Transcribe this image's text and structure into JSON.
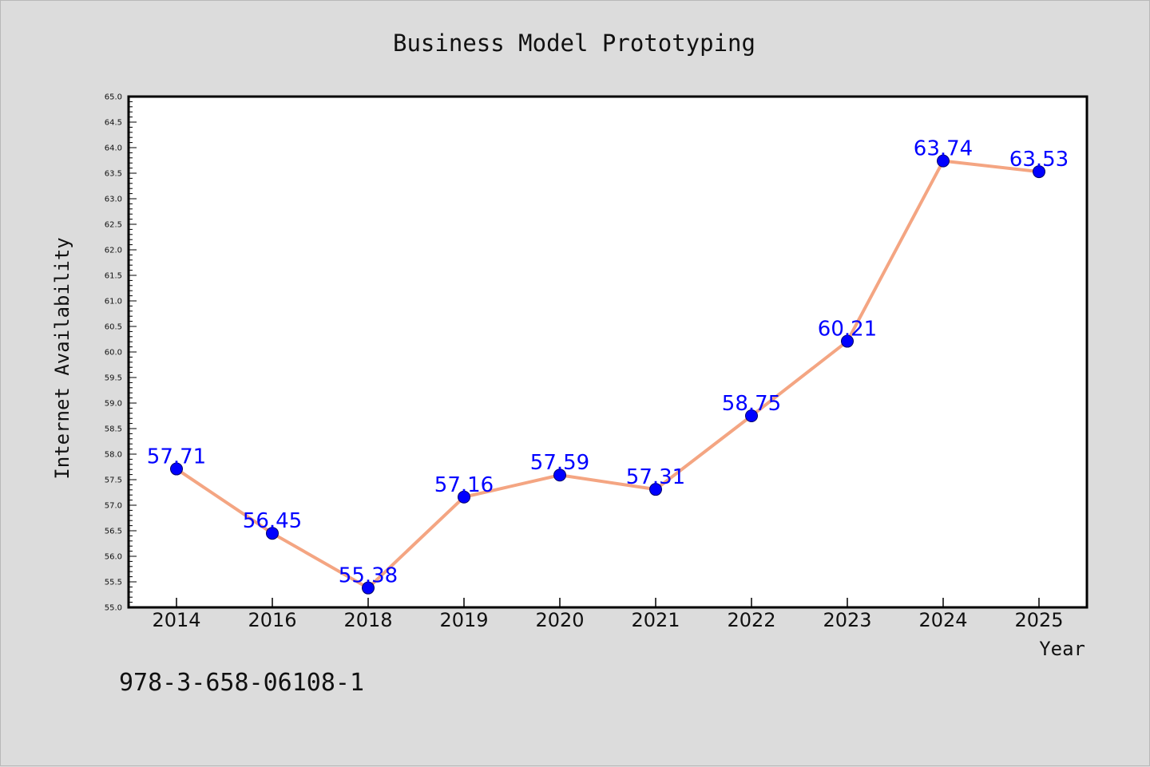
{
  "chart_data": {
    "type": "line",
    "title": "Business Model Prototyping",
    "xlabel": "Year",
    "ylabel": "Internet Availability",
    "categories": [
      "2014",
      "2016",
      "2018",
      "2019",
      "2020",
      "2021",
      "2022",
      "2023",
      "2024",
      "2025"
    ],
    "series": [
      {
        "values": [
          57.71,
          56.45,
          55.38,
          57.16,
          57.59,
          57.31,
          58.75,
          60.21,
          63.74,
          63.53
        ]
      }
    ],
    "data_labels": [
      "57.71",
      "56.45",
      "55.38",
      "57.16",
      "57.59",
      "57.31",
      "58.75",
      "60.21",
      "63.74",
      "63.53"
    ],
    "ylim": [
      55.0,
      65.0
    ],
    "y_major_ticks": [
      "55.0",
      "55.5",
      "56.0",
      "56.5",
      "57.0",
      "57.5",
      "58.0",
      "58.5",
      "59.0",
      "59.5",
      "60.0",
      "60.5",
      "61.0",
      "61.5",
      "62.0",
      "62.5",
      "63.0",
      "63.5",
      "64.0",
      "64.5",
      "65.0"
    ],
    "grid": false,
    "legend": "none",
    "line_color": "#f4a582",
    "marker_color": "#0000ff",
    "label_color": "#0000ff"
  },
  "annotation": {
    "isbn": "978-3-658-06108-1"
  }
}
